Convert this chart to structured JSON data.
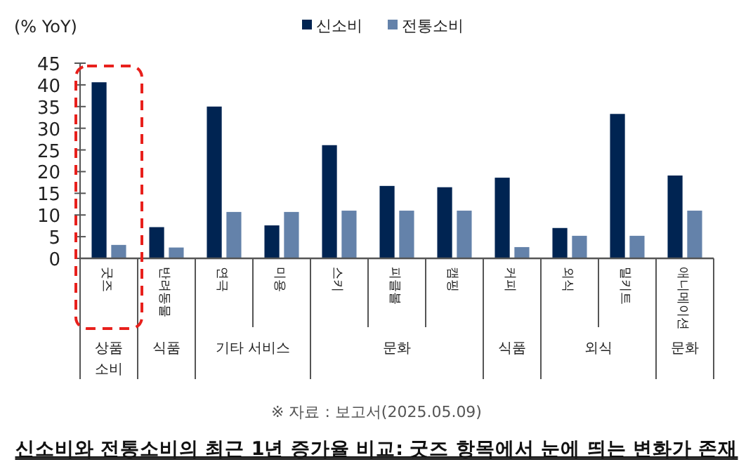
{
  "chart_data": {
    "type": "bar",
    "title": "신소비와 전통소비의 최근 1년 증가율 비교: 굿즈 항목에서 눈에 띄는 변화가 존재",
    "ylabel": "(% YoY)",
    "categories": [
      "굿즈",
      "반려동물",
      "연극",
      "미용",
      "스키",
      "피클볼",
      "캠핑",
      "커피",
      "외식",
      "밀키트",
      "애니메이션"
    ],
    "series": [
      {
        "name": "신소비",
        "color": "#002452",
        "values": [
          40.6,
          7.2,
          35.0,
          7.6,
          26.1,
          16.7,
          16.4,
          18.6,
          7.0,
          33.3,
          19.1
        ]
      },
      {
        "name": "전통소비",
        "color": "#6482aa",
        "values": [
          3.1,
          2.5,
          10.7,
          10.7,
          11.0,
          11.0,
          11.0,
          2.6,
          5.2,
          5.2,
          11.0
        ]
      }
    ],
    "ylim": [
      0,
      45
    ],
    "yticks": [
      0,
      5,
      10,
      15,
      20,
      25,
      30,
      35,
      40,
      45
    ],
    "legend": "top",
    "grid": false,
    "annotations": [
      "상품 소비",
      "식품",
      "기타 서비스",
      "문화",
      "식품",
      "외식",
      "문화",
      "※ 자료 : 보고서(2025.05.09)"
    ]
  }
}
